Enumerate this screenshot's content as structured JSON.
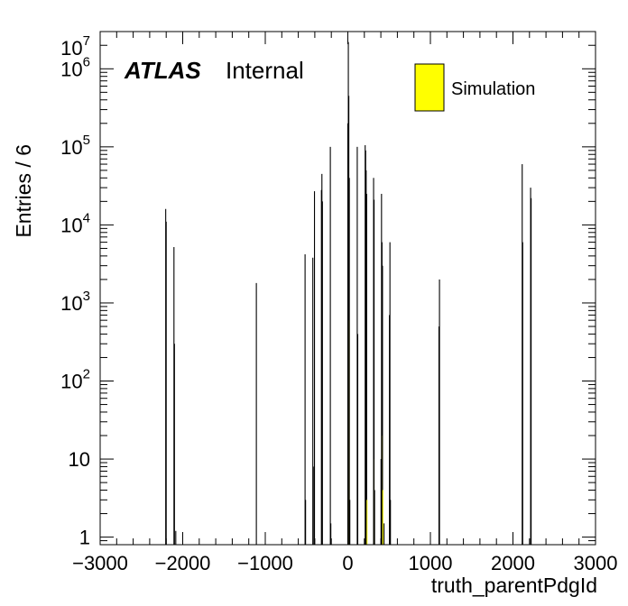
{
  "chart_data": {
    "type": "bar",
    "xlabel": "truth_parentPdgId",
    "ylabel": "Entries / 6",
    "xlim": [
      -3000,
      3000
    ],
    "ylim": [
      0.8,
      3000000
    ],
    "yscale": "log",
    "bin_width": 6,
    "grid": false,
    "x_ticks": [
      -3000,
      -2000,
      -1000,
      0,
      1000,
      2000,
      3000
    ],
    "x_tick_labels": [
      "−3000",
      "−2000",
      "−1000",
      "0",
      "1000",
      "2000",
      "3000"
    ],
    "y_ticks": [
      {
        "value": 1,
        "base": "1",
        "exp": ""
      },
      {
        "value": 10,
        "base": "10",
        "exp": ""
      },
      {
        "value": 100,
        "base": "10",
        "exp": "2"
      },
      {
        "value": 1000,
        "base": "10",
        "exp": "3"
      },
      {
        "value": 10000,
        "base": "10",
        "exp": "4"
      },
      {
        "value": 100000,
        "base": "10",
        "exp": "5"
      },
      {
        "value": 1000000,
        "base": "10",
        "exp": "6"
      },
      {
        "value": 10000000,
        "base": "10",
        "exp": "7"
      }
    ],
    "labels": {
      "experiment": "ATLAS",
      "status": "Internal"
    },
    "legend": {
      "placement": "top-right",
      "entries": [
        {
          "name": "Simulation",
          "color": "#ffff00"
        }
      ]
    },
    "series": [
      {
        "name": "Simulation",
        "fill": "#ffff00",
        "outline": "#000000",
        "bins": [
          {
            "x": -2212,
            "y": 16000
          },
          {
            "x": -2206,
            "y": 11000
          },
          {
            "x": -2112,
            "y": 5200
          },
          {
            "x": -2106,
            "y": 300
          },
          {
            "x": -2090,
            "y": 1.2
          },
          {
            "x": -1114,
            "y": 1800
          },
          {
            "x": -524,
            "y": 4200
          },
          {
            "x": -518,
            "y": 3
          },
          {
            "x": -430,
            "y": 3800
          },
          {
            "x": -424,
            "y": 8
          },
          {
            "x": -410,
            "y": 27000
          },
          {
            "x": -326,
            "y": 28000
          },
          {
            "x": -320,
            "y": 45000
          },
          {
            "x": -314,
            "y": 20000
          },
          {
            "x": -218,
            "y": 100000
          },
          {
            "x": -212,
            "y": 1.5
          },
          {
            "x": -6,
            "y": 200000
          },
          {
            "x": 0,
            "y": 2200000,
            "yellow": 60000
          },
          {
            "x": 6,
            "y": 450000,
            "yellow": 600
          },
          {
            "x": 12,
            "y": 40000
          },
          {
            "x": 18,
            "y": 3
          },
          {
            "x": 108,
            "y": 100000
          },
          {
            "x": 114,
            "y": 400
          },
          {
            "x": 204,
            "y": 105000
          },
          {
            "x": 210,
            "y": 90000
          },
          {
            "x": 216,
            "y": 50000
          },
          {
            "x": 222,
            "y": 25000,
            "yellow": 3
          },
          {
            "x": 306,
            "y": 40000,
            "yellow": 10
          },
          {
            "x": 312,
            "y": 21000
          },
          {
            "x": 318,
            "y": 4
          },
          {
            "x": 396,
            "y": 10
          },
          {
            "x": 402,
            "y": 25000
          },
          {
            "x": 408,
            "y": 6000,
            "yellow": 20
          },
          {
            "x": 414,
            "y": 3000,
            "yellow": 4
          },
          {
            "x": 432,
            "y": 1.5
          },
          {
            "x": 498,
            "y": 700
          },
          {
            "x": 504,
            "y": 6000
          },
          {
            "x": 510,
            "y": 3
          },
          {
            "x": 1098,
            "y": 500
          },
          {
            "x": 1104,
            "y": 2000
          },
          {
            "x": 2106,
            "y": 60000
          },
          {
            "x": 2112,
            "y": 6000
          },
          {
            "x": 2208,
            "y": 30000
          },
          {
            "x": 2214,
            "y": 22000
          }
        ]
      }
    ]
  }
}
